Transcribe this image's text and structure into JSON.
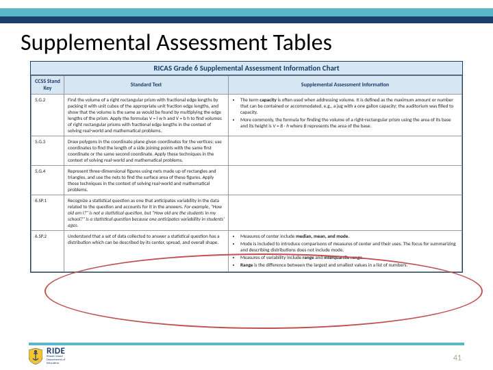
{
  "slide": {
    "title": "Supplemental Assessment Tables",
    "page_number": "41"
  },
  "colors": {
    "teal": "#5bb6c7",
    "navy": "#1a3e6b",
    "header_bg": "#d6e6f2",
    "ellipse": "#c0504d",
    "pagenum": "#b0a58a"
  },
  "logo": {
    "text": "RIDE",
    "sub1": "Rhode Island",
    "sub2": "Department of",
    "sub3": "Education"
  },
  "table": {
    "caption": "RICAS Grade 6 Supplemental Assessment Information Chart",
    "columns": [
      "CCSS Stand Key",
      "Standard Text",
      "Supplemental Assessment Information"
    ],
    "rows": [
      {
        "key": "5.G.2",
        "standard": "Find the volume of a right rectangular prism with fractional edge lengths by packing it with unit cubes of the appropriate unit fraction edge lengths, and show that the volume is the same as would be found by multiplying the edge lengths of the prism. Apply the formulas V = l w h and V = b h to find volumes of right rectangular prisms with fractional edge lengths in the context of solving real-world and mathematical problems.",
        "supplemental": [
          "The term <span class=\"bold\">capacity</span> is often used when addressing volume. It is defined as the maximum amount or number that can be contained or accommodated, e.g., a jug with a one gallon capacity; the auditorium was filled to capacity.",
          "More commonly, the formula for finding the volume of a right-rectangular prism using the area of its base and its height is <span class=\"italic\">V = B · h</span> where <span class=\"italic\">B</span> represents the area of the base."
        ]
      },
      {
        "key": "5.G.3",
        "standard": "Draw polygons in the coordinate plane given coordinates for the vertices; use coordinates to find the length of a side joining points with the same first coordinate or the same second coordinate. Apply these techniques in the context of solving real-world and mathematical problems.",
        "supplemental": []
      },
      {
        "key": "5.G.4",
        "standard": "Represent three-dimensional figures using nets made up of rectangles and triangles, and use the nets to find the surface area of these figures. Apply these techniques in the context of solving real-world and mathematical problems.",
        "supplemental": []
      },
      {
        "key": "6.SP.1",
        "standard": "Recognize a statistical question as one that anticipates variability in the data related to the question and accounts for it in the answers. <span class=\"italic\">For example, \"How old am I?\" is not a statistical question, but \"How old are the students in my school?\" is a statistical question because one anticipates variability in students' ages.</span>",
        "supplemental": []
      },
      {
        "key": "6.SP.2",
        "standard": "Understand that a set of data collected to answer a statistical question has a distribution which can be described by its center, spread, and overall shape.",
        "supplemental": [
          "Measures of center include <span class=\"bold\">median, mean, and mode</span>.",
          "Mode is included to introduce comparisons of measures of center and their uses. The focus for summarizing and describing distributions does not include mode.",
          "Measures of variability include <span class=\"bold\">range</span> and <span class=\"bold\">interquartile range</span>.",
          "<span class=\"bold\">Range</span> is the difference between the largest and smallest values in a list of numbers."
        ]
      }
    ]
  }
}
